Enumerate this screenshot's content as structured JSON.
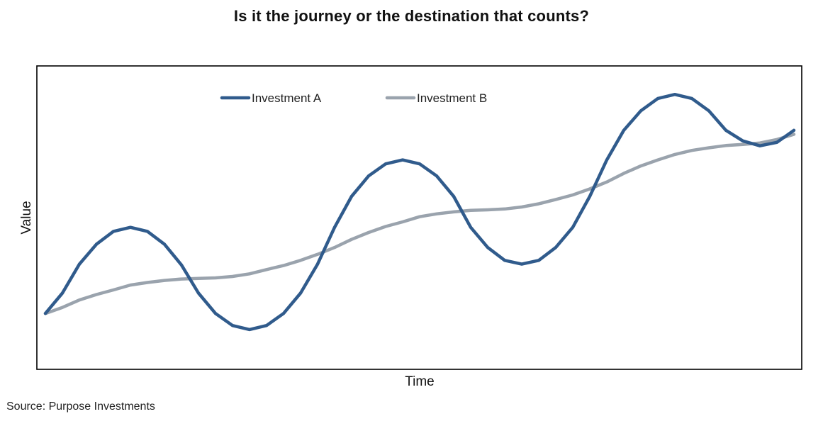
{
  "chart_data": {
    "type": "line",
    "title": "Is it the journey or the destination that counts?",
    "xlabel": "Time",
    "ylabel": "Value",
    "x_ticks_shown": false,
    "y_ticks_shown": false,
    "grid": false,
    "legend_position": "top-center",
    "xlim": [
      0,
      44
    ],
    "ylim": [
      0,
      100
    ],
    "x": [
      0,
      1,
      2,
      3,
      4,
      5,
      6,
      7,
      8,
      9,
      10,
      11,
      12,
      13,
      14,
      15,
      16,
      17,
      18,
      19,
      20,
      21,
      22,
      23,
      24,
      25,
      26,
      27,
      28,
      29,
      30,
      31,
      32,
      33,
      34,
      35,
      36,
      37,
      38,
      39,
      40,
      41,
      42,
      43,
      44
    ],
    "series": [
      {
        "name": "Investment A",
        "color": "#305b8c",
        "values": [
          15.5,
          22.6,
          32.7,
          39.6,
          44.1,
          45.5,
          44.1,
          39.6,
          32.4,
          22.6,
          15.5,
          11.3,
          9.9,
          11.3,
          15.5,
          22.6,
          32.7,
          45.5,
          56.3,
          63.4,
          67.6,
          69.0,
          67.6,
          63.4,
          56.3,
          45.5,
          38.5,
          34.0,
          32.7,
          34.0,
          38.5,
          45.5,
          56.3,
          69.0,
          79.3,
          86.1,
          90.4,
          91.8,
          90.4,
          86.1,
          79.3,
          75.6,
          73.9,
          75.1,
          79.3
        ]
      },
      {
        "name": "Investment B",
        "color": "#9aa3ad",
        "values": [
          15.5,
          17.6,
          20.2,
          22.1,
          23.7,
          25.4,
          26.3,
          27.0,
          27.5,
          27.7,
          27.9,
          28.4,
          29.3,
          30.8,
          32.2,
          34.0,
          36.1,
          38.5,
          41.3,
          43.7,
          45.8,
          47.4,
          49.2,
          50.2,
          50.9,
          51.4,
          51.6,
          51.9,
          52.6,
          53.7,
          55.2,
          56.8,
          58.9,
          61.3,
          64.3,
          66.9,
          69.0,
          70.9,
          72.3,
          73.2,
          74.0,
          74.4,
          74.9,
          76.1,
          77.9
        ]
      }
    ]
  },
  "source": "Source: Purpose Investments"
}
